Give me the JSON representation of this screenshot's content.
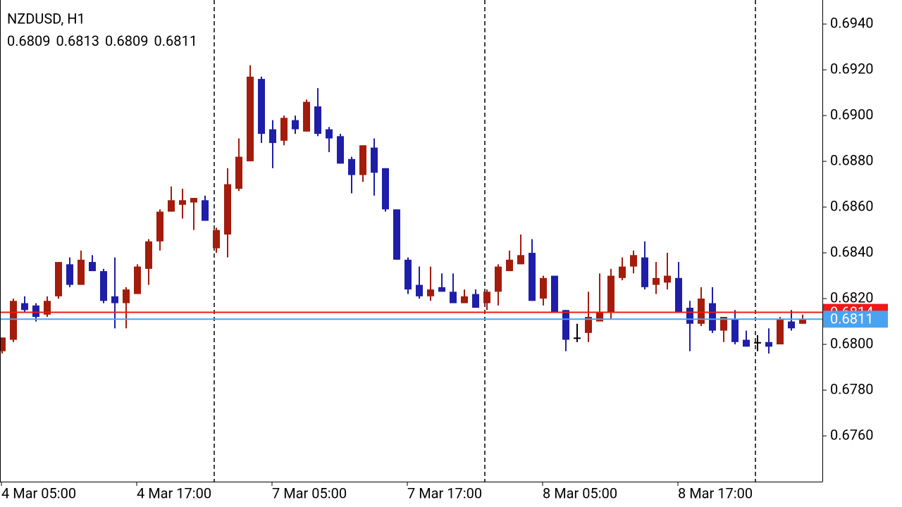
{
  "chart_data": {
    "type": "candlestick",
    "title": "NZDUSD, H1",
    "categories": [
      "4 Mar 05:00",
      null,
      null,
      null,
      null,
      null,
      null,
      null,
      null,
      null,
      null,
      null,
      "4 Mar 17:00",
      null,
      null,
      null,
      null,
      null,
      null,
      null,
      null,
      null,
      null,
      null,
      "7 Mar 05:00",
      null,
      null,
      null,
      null,
      null,
      null,
      null,
      null,
      null,
      null,
      null,
      "7 Mar 17:00",
      null,
      null,
      null,
      null,
      null,
      null,
      null,
      null,
      null,
      null,
      null,
      "8 Mar 05:00",
      null,
      null,
      null,
      null,
      null,
      null,
      null,
      null,
      null,
      null,
      null,
      "8 Mar 17:00",
      null,
      null,
      null,
      null,
      null,
      null,
      null,
      null,
      null,
      null,
      null
    ],
    "open": [
      0.6797,
      0.6802,
      0.6818,
      0.6817,
      0.6813,
      0.6821,
      0.6835,
      0.6826,
      0.6836,
      0.6832,
      0.6821,
      0.6818,
      0.6822,
      0.6833,
      0.6845,
      0.6858,
      0.6861,
      0.6862,
      0.6863,
      0.6842,
      0.6848,
      0.6868,
      0.688,
      0.6916,
      0.6894,
      0.6889,
      0.6898,
      0.6893,
      0.6904,
      0.6894,
      0.6891,
      0.6881,
      0.6874,
      0.6886,
      0.6877,
      0.6859,
      0.6837,
      0.6826,
      0.6821,
      0.6825,
      0.6823,
      0.6818,
      0.6822,
      0.6818,
      0.6823,
      0.6832,
      0.6835,
      0.684,
      0.682,
      0.683,
      0.6815,
      0.6803,
      0.6805,
      0.681,
      0.6814,
      0.6829,
      0.6834,
      0.6838,
      0.6826,
      0.6827,
      0.6829,
      0.6816,
      0.6809,
      0.6818,
      0.6806,
      0.6811,
      0.6802,
      0.6801,
      0.6801,
      0.68,
      0.681,
      0.6809
    ],
    "high": [
      0.6803,
      0.682,
      0.6821,
      0.6818,
      0.6821,
      0.6836,
      0.6838,
      0.6841,
      0.6839,
      0.6833,
      0.6838,
      0.6825,
      0.6835,
      0.6846,
      0.6859,
      0.6869,
      0.6868,
      0.6864,
      0.6865,
      0.6851,
      0.6877,
      0.689,
      0.6922,
      0.6917,
      0.6898,
      0.69,
      0.69,
      0.6907,
      0.6912,
      0.6895,
      0.6892,
      0.6882,
      0.6887,
      0.689,
      0.6877,
      0.6859,
      0.6838,
      0.6834,
      0.6834,
      0.6831,
      0.6831,
      0.6824,
      0.6824,
      0.6824,
      0.6835,
      0.6841,
      0.6848,
      0.6846,
      0.683,
      0.683,
      0.6815,
      0.6809,
      0.6823,
      0.6831,
      0.6833,
      0.6838,
      0.6841,
      0.6845,
      0.6836,
      0.684,
      0.6836,
      0.6819,
      0.6825,
      0.6825,
      0.6812,
      0.6815,
      0.6806,
      0.6804,
      0.6807,
      0.6812,
      0.6815,
      0.6813
    ],
    "low": [
      0.6796,
      0.6801,
      0.6814,
      0.681,
      0.6812,
      0.682,
      0.6825,
      0.6826,
      0.6832,
      0.6818,
      0.6807,
      0.6807,
      0.6822,
      0.6826,
      0.6841,
      0.6858,
      0.6855,
      0.685,
      0.6854,
      0.684,
      0.6838,
      0.6867,
      0.688,
      0.6888,
      0.6877,
      0.6887,
      0.6892,
      0.6893,
      0.6891,
      0.6884,
      0.6879,
      0.6866,
      0.6871,
      0.6865,
      0.6858,
      0.6837,
      0.6822,
      0.682,
      0.6819,
      0.6823,
      0.6818,
      0.6818,
      0.6816,
      0.6815,
      0.6817,
      0.6832,
      0.6835,
      0.6819,
      0.6817,
      0.6814,
      0.6797,
      0.6801,
      0.6801,
      0.681,
      0.6811,
      0.6828,
      0.6831,
      0.6824,
      0.6822,
      0.6824,
      0.6814,
      0.6797,
      0.6808,
      0.6805,
      0.6801,
      0.68,
      0.6799,
      0.6797,
      0.6796,
      0.68,
      0.6806,
      0.6809
    ],
    "close": [
      0.6803,
      0.6819,
      0.6815,
      0.6812,
      0.6819,
      0.6836,
      0.6826,
      0.6837,
      0.6832,
      0.6819,
      0.6818,
      0.6824,
      0.6834,
      0.6845,
      0.6858,
      0.6863,
      0.6863,
      0.6864,
      0.6854,
      0.685,
      0.687,
      0.6882,
      0.6917,
      0.6892,
      0.6888,
      0.6899,
      0.6894,
      0.6906,
      0.6892,
      0.689,
      0.6879,
      0.6874,
      0.6887,
      0.6875,
      0.6859,
      0.6837,
      0.6824,
      0.6821,
      0.6824,
      0.6823,
      0.6818,
      0.6821,
      0.6816,
      0.6823,
      0.6834,
      0.6837,
      0.6839,
      0.6819,
      0.6829,
      0.6814,
      0.6802,
      0.6803,
      0.6812,
      0.6814,
      0.683,
      0.6834,
      0.6839,
      0.6825,
      0.6829,
      0.683,
      0.6814,
      0.6809,
      0.682,
      0.6806,
      0.6812,
      0.6801,
      0.6799,
      0.6801,
      0.6799,
      0.6811,
      0.6807,
      0.6811
    ],
    "up_color": "#a31c0c",
    "down_color": "#1e1ea8",
    "doji_color": "#000000",
    "ylim": [
      0.674,
      0.69505
    ],
    "yticks": [
      {
        "value": 0.676,
        "label": "0.6760"
      },
      {
        "value": 0.678,
        "label": "0.6780"
      },
      {
        "value": 0.68,
        "label": "0.6800"
      },
      {
        "value": 0.682,
        "label": "0.6820"
      },
      {
        "value": 0.684,
        "label": "0.6840"
      },
      {
        "value": 0.686,
        "label": "0.6860"
      },
      {
        "value": 0.688,
        "label": "0.6880"
      },
      {
        "value": 0.69,
        "label": "0.6900"
      },
      {
        "value": 0.692,
        "label": "0.6920"
      },
      {
        "value": 0.694,
        "label": "0.6940"
      }
    ],
    "ask": {
      "value": 0.6814,
      "color": "#f01818"
    },
    "bid": {
      "value": 0.6811,
      "color": "#4aa3f0"
    }
  }
}
